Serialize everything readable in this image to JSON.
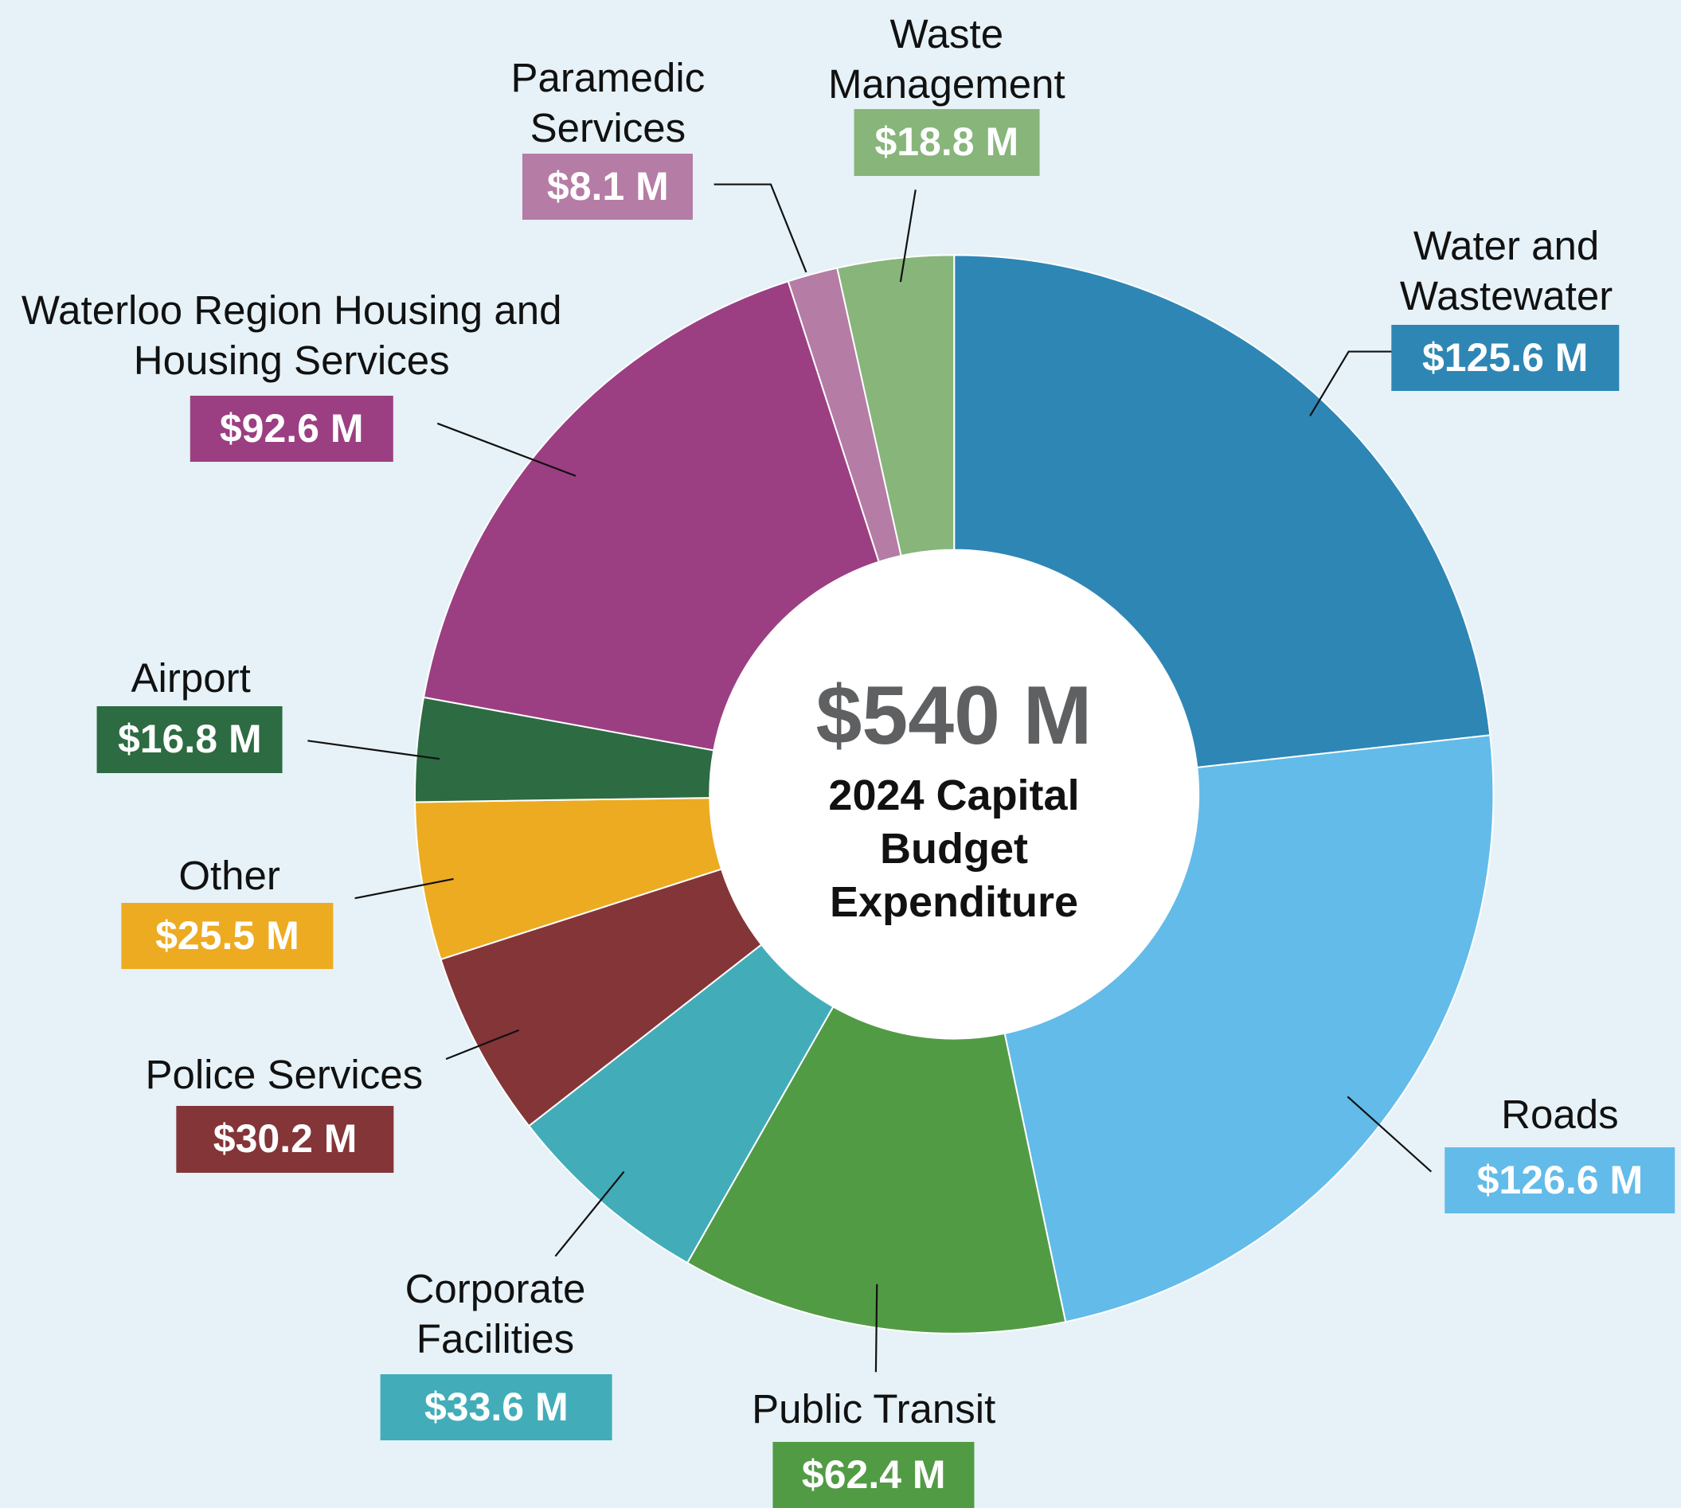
{
  "chart_data": {
    "type": "donut",
    "center_label": "$540 M",
    "title": "2024 Capital Budget Expenditure",
    "categories": [
      "Water and Wastewater",
      "Roads",
      "Public Transit",
      "Corporate Facilities",
      "Police Services",
      "Other",
      "Airport",
      "Waterloo Region Housing and Housing Services",
      "Paramedic Services",
      "Waste Management"
    ],
    "values": [
      125.6,
      126.6,
      62.4,
      33.6,
      30.2,
      25.5,
      16.8,
      92.6,
      8.1,
      18.8
    ],
    "value_labels": [
      "$125.6 M",
      "$126.6 M",
      "$62.4 M",
      "$33.6 M",
      "$30.2 M",
      "$25.5 M",
      "$16.8 M",
      "$92.6 M",
      "$8.1 M",
      "$18.8 M"
    ],
    "colors": [
      "#2e86b5",
      "#63bbe9",
      "#529b45",
      "#42adb8",
      "#843538",
      "#edab22",
      "#2d6b42",
      "#9b3f82",
      "#b57ca5",
      "#87b57a"
    ]
  }
}
